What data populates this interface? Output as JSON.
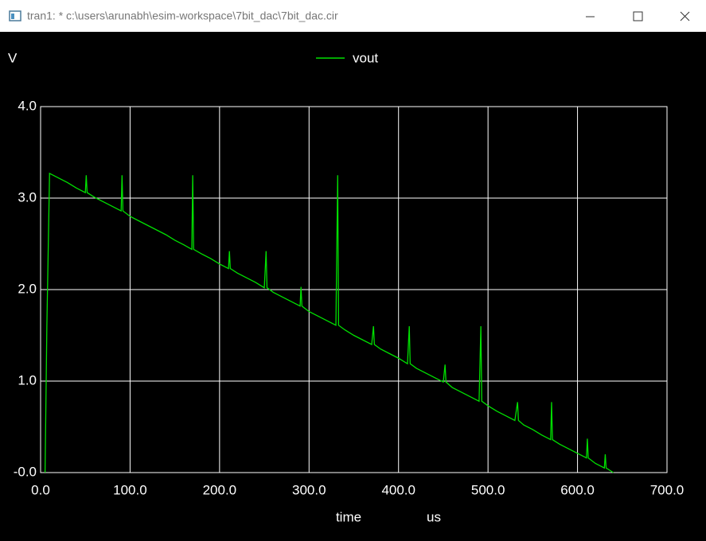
{
  "window": {
    "title": "tran1: * c:\\users\\arunabh\\esim-workspace\\7bit_dac\\7bit_dac.cir"
  },
  "chart_data": {
    "type": "line",
    "ylabel": "V",
    "xlabel": "time",
    "xunit": "us",
    "grid": true,
    "legend": "top",
    "x": [
      5,
      7,
      9,
      10,
      20,
      30,
      40,
      50,
      51,
      52,
      60,
      70,
      80,
      90,
      91,
      92,
      100,
      110,
      120,
      130,
      140,
      150,
      160,
      169,
      170,
      171,
      180,
      190,
      200,
      210,
      211,
      212,
      220,
      230,
      240,
      250,
      252,
      253,
      260,
      270,
      280,
      290,
      291,
      292,
      300,
      310,
      320,
      330,
      332,
      333,
      340,
      350,
      360,
      370,
      372,
      373,
      380,
      390,
      400,
      410,
      412,
      413,
      420,
      430,
      440,
      450,
      452,
      453,
      460,
      470,
      480,
      490,
      492,
      493,
      500,
      510,
      520,
      530,
      533,
      534,
      540,
      550,
      560,
      570,
      571,
      572,
      580,
      590,
      600,
      610,
      611,
      612,
      620,
      630,
      631,
      632,
      640
    ],
    "series": [
      {
        "name": "vout",
        "color": "#00e000",
        "values": [
          0,
          1.6,
          2.7,
          3.27,
          3.22,
          3.17,
          3.11,
          3.06,
          3.25,
          3.06,
          3.01,
          2.96,
          2.91,
          2.86,
          3.25,
          2.86,
          2.8,
          2.75,
          2.7,
          2.65,
          2.6,
          2.54,
          2.49,
          2.44,
          3.25,
          2.44,
          2.39,
          2.34,
          2.28,
          2.23,
          2.42,
          2.23,
          2.18,
          2.13,
          2.08,
          2.02,
          2.42,
          2.02,
          1.97,
          1.92,
          1.87,
          1.82,
          2.03,
          1.82,
          1.76,
          1.71,
          1.66,
          1.61,
          3.25,
          1.61,
          1.56,
          1.5,
          1.45,
          1.4,
          1.6,
          1.4,
          1.35,
          1.3,
          1.25,
          1.19,
          1.6,
          1.19,
          1.14,
          1.09,
          1.04,
          0.99,
          1.18,
          0.99,
          0.93,
          0.88,
          0.83,
          0.78,
          1.6,
          0.78,
          0.73,
          0.67,
          0.62,
          0.57,
          0.77,
          0.57,
          0.52,
          0.47,
          0.41,
          0.36,
          0.77,
          0.36,
          0.31,
          0.26,
          0.21,
          0.16,
          0.37,
          0.16,
          0.1,
          0.05,
          0.2,
          0.05,
          0
        ]
      }
    ],
    "xlim": [
      0,
      700
    ],
    "xticks": [
      {
        "value": 0,
        "label": "0.0"
      },
      {
        "value": 100,
        "label": "100.0"
      },
      {
        "value": 200,
        "label": "200.0"
      },
      {
        "value": 300,
        "label": "300.0"
      },
      {
        "value": 400,
        "label": "400.0"
      },
      {
        "value": 500,
        "label": "500.0"
      },
      {
        "value": 600,
        "label": "600.0"
      },
      {
        "value": 700,
        "label": "700.0"
      }
    ],
    "ylim": [
      0,
      4
    ],
    "yticks": [
      {
        "value": 0,
        "label": "-0.0"
      },
      {
        "value": 1,
        "label": "1.0"
      },
      {
        "value": 2,
        "label": "2.0"
      },
      {
        "value": 3,
        "label": "3.0"
      },
      {
        "value": 4,
        "label": "4.0"
      }
    ]
  }
}
